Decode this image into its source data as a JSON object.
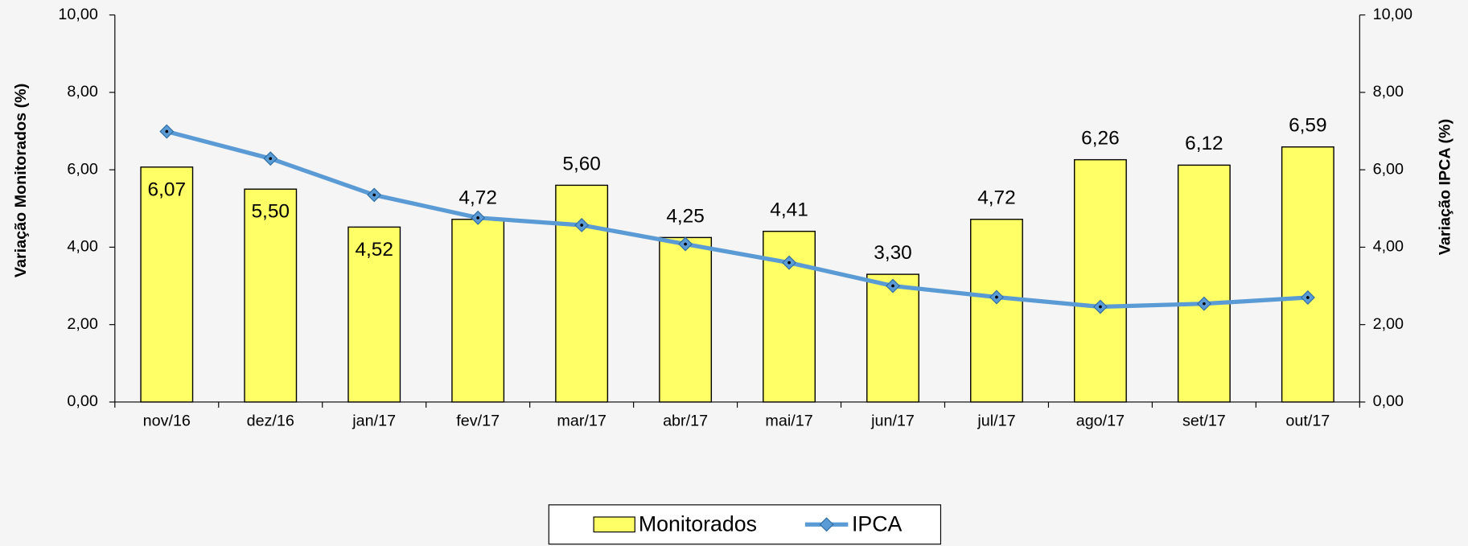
{
  "chart_data": {
    "type": "bar-line",
    "y_label": "Variação Monitorados (%)",
    "y2_label": "Variação IPCA (%)",
    "categories": [
      "nov/16",
      "dez/16",
      "jan/17",
      "fev/17",
      "mar/17",
      "abr/17",
      "mai/17",
      "jun/17",
      "jul/17",
      "ago/17",
      "set/17",
      "out/17"
    ],
    "series": [
      {
        "name": "Monitorados",
        "type": "bar",
        "color": "#ffff66",
        "values": [
          6.07,
          5.5,
          4.52,
          4.72,
          5.6,
          4.25,
          4.41,
          3.3,
          4.72,
          6.26,
          6.12,
          6.59
        ],
        "value_labels": [
          "6,07",
          "5,50",
          "4,52",
          "4,72",
          "5,60",
          "4,25",
          "4,41",
          "3,30",
          "4,72",
          "6,26",
          "6,12",
          "6,59"
        ]
      },
      {
        "name": "IPCA",
        "type": "line",
        "axis": "y2",
        "color": "#5b9bd5",
        "values": [
          6.99,
          6.29,
          5.35,
          4.76,
          4.57,
          4.08,
          3.6,
          3.0,
          2.71,
          2.46,
          2.54,
          2.7
        ]
      }
    ],
    "ylim": [
      0,
      10
    ],
    "yticks": [
      {
        "value": 0,
        "label": "0,00"
      },
      {
        "value": 2,
        "label": "2,00"
      },
      {
        "value": 4,
        "label": "4,00"
      },
      {
        "value": 6,
        "label": "6,00"
      },
      {
        "value": 8,
        "label": "8,00"
      },
      {
        "value": 10,
        "label": "10,00"
      }
    ],
    "y2lim": [
      0,
      10
    ],
    "y2ticks": [
      {
        "value": 0,
        "label": "0,00"
      },
      {
        "value": 2,
        "label": "2,00"
      },
      {
        "value": 4,
        "label": "4,00"
      },
      {
        "value": 6,
        "label": "6,00"
      },
      {
        "value": 8,
        "label": "8,00"
      },
      {
        "value": 10,
        "label": "10,00"
      }
    ],
    "legend": "bottom"
  }
}
